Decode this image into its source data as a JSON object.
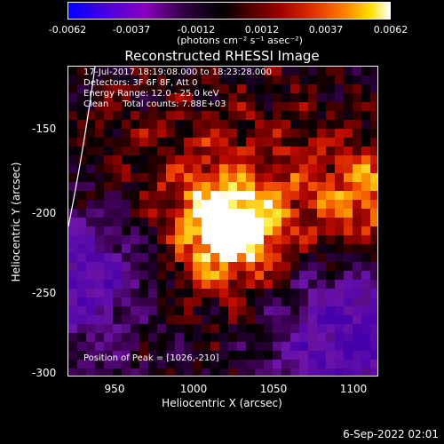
{
  "colorbar": {
    "ticks": [
      "-0.0062",
      "-0.0037",
      "-0.0012",
      "0.0012",
      "0.0037",
      "0.0062"
    ],
    "unit": "(photons cm⁻² s⁻¹ asec⁻²)"
  },
  "title": "Reconstructed RHESSI Image",
  "annotations": {
    "time": "17-Jul-2017 18:19:08.000 to 18:23:28.000",
    "detectors": "Detectors: 3F 6F 8F, Att 0",
    "energy": "Energy Range: 12.0 - 25.0 keV",
    "counts": "Clean     Total counts: 7.88E+03",
    "peak": "Position of Peak = [1026,-210]"
  },
  "axes": {
    "ylabel": "Heliocentric  Y (arcsec)",
    "xlabel": "Heliocentric X (arcsec)",
    "yticks": [
      "-150",
      "-200",
      "-250",
      "-300"
    ],
    "xticks": [
      "950",
      "1000",
      "1050",
      "1100"
    ]
  },
  "footer": "6-Sep-2022 02:01"
}
